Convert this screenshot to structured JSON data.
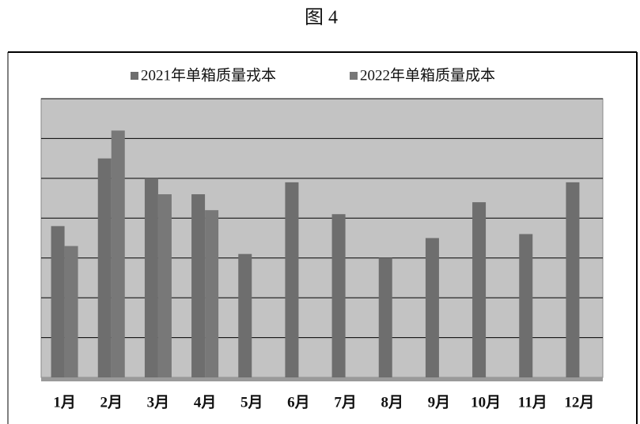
{
  "chart_data": {
    "type": "bar",
    "title": "图 4",
    "categories": [
      "1月",
      "2月",
      "3月",
      "4月",
      "5月",
      "6月",
      "7月",
      "8月",
      "9月",
      "10月",
      "11月",
      "12月"
    ],
    "series": [
      {
        "name": "2021年单箱质量戎本",
        "color": "#6e6e6e",
        "values": [
          3.8,
          5.5,
          5.0,
          4.6,
          3.1,
          4.9,
          4.1,
          3.0,
          3.5,
          4.4,
          3.6,
          4.9
        ]
      },
      {
        "name": "2022年单箱质量成本",
        "color": "#787878",
        "values": [
          3.3,
          6.2,
          4.6,
          4.2,
          null,
          null,
          null,
          null,
          null,
          null,
          null,
          null
        ]
      }
    ],
    "ylim": [
      0,
      7
    ],
    "yticks": [
      1,
      2,
      3,
      4,
      5,
      6,
      7
    ],
    "grid": true,
    "legend": "top"
  }
}
